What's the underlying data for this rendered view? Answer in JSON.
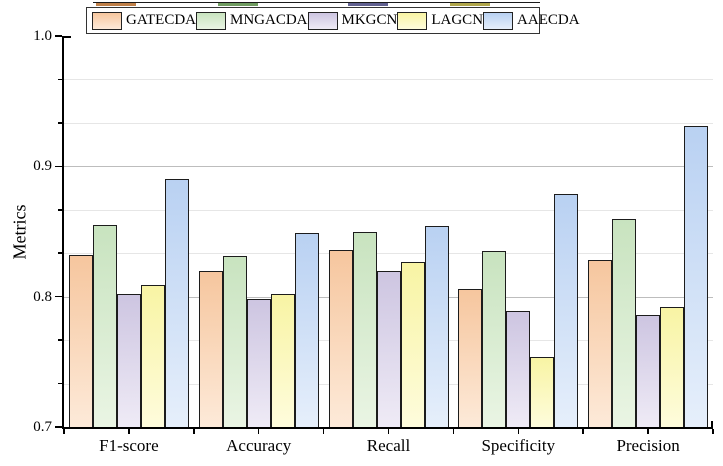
{
  "chart_data": {
    "type": "bar",
    "title": "",
    "categories": [
      "F1-score",
      "Accuracy",
      "Recall",
      "Specificity",
      "Precision"
    ],
    "series": [
      {
        "name": "GATECDA",
        "color_top": "#F6C69E",
        "color_bottom": "#FDEAD9",
        "values": [
          0.832,
          0.82,
          0.836,
          0.806,
          0.828
        ]
      },
      {
        "name": "MNGACDA",
        "color_top": "#C8E3BF",
        "color_bottom": "#EAF5E4",
        "values": [
          0.855,
          0.831,
          0.85,
          0.835,
          0.86
        ]
      },
      {
        "name": "MKGCN",
        "color_top": "#CDC5E1",
        "color_bottom": "#EFEBF6",
        "values": [
          0.802,
          0.798,
          0.82,
          0.789,
          0.786
        ]
      },
      {
        "name": "LAGCN",
        "color_top": "#F8F4A4",
        "color_bottom": "#FEFCDC",
        "values": [
          0.809,
          0.802,
          0.827,
          0.754,
          0.792
        ]
      },
      {
        "name": "AAECDA",
        "color_top": "#B9D1F2",
        "color_bottom": "#E6EFFB",
        "values": [
          0.89,
          0.849,
          0.854,
          0.879,
          0.931
        ]
      }
    ],
    "xlabel": "",
    "ylabel": "Metrics",
    "ylim": [
      0.7,
      1.0
    ],
    "yticks": [
      0.7,
      0.8,
      0.9,
      1.0
    ],
    "y_minor_divisions": 3,
    "grid": true,
    "legend_position": "top",
    "outline_color": "#1c1c1c",
    "major_grid_color": "#bdbdbd",
    "minor_grid_color": "#e6e6e6",
    "artifact_strip_colors": [
      "#c08048",
      "#6f9c60",
      "#606090",
      "#b0a64a"
    ]
  }
}
